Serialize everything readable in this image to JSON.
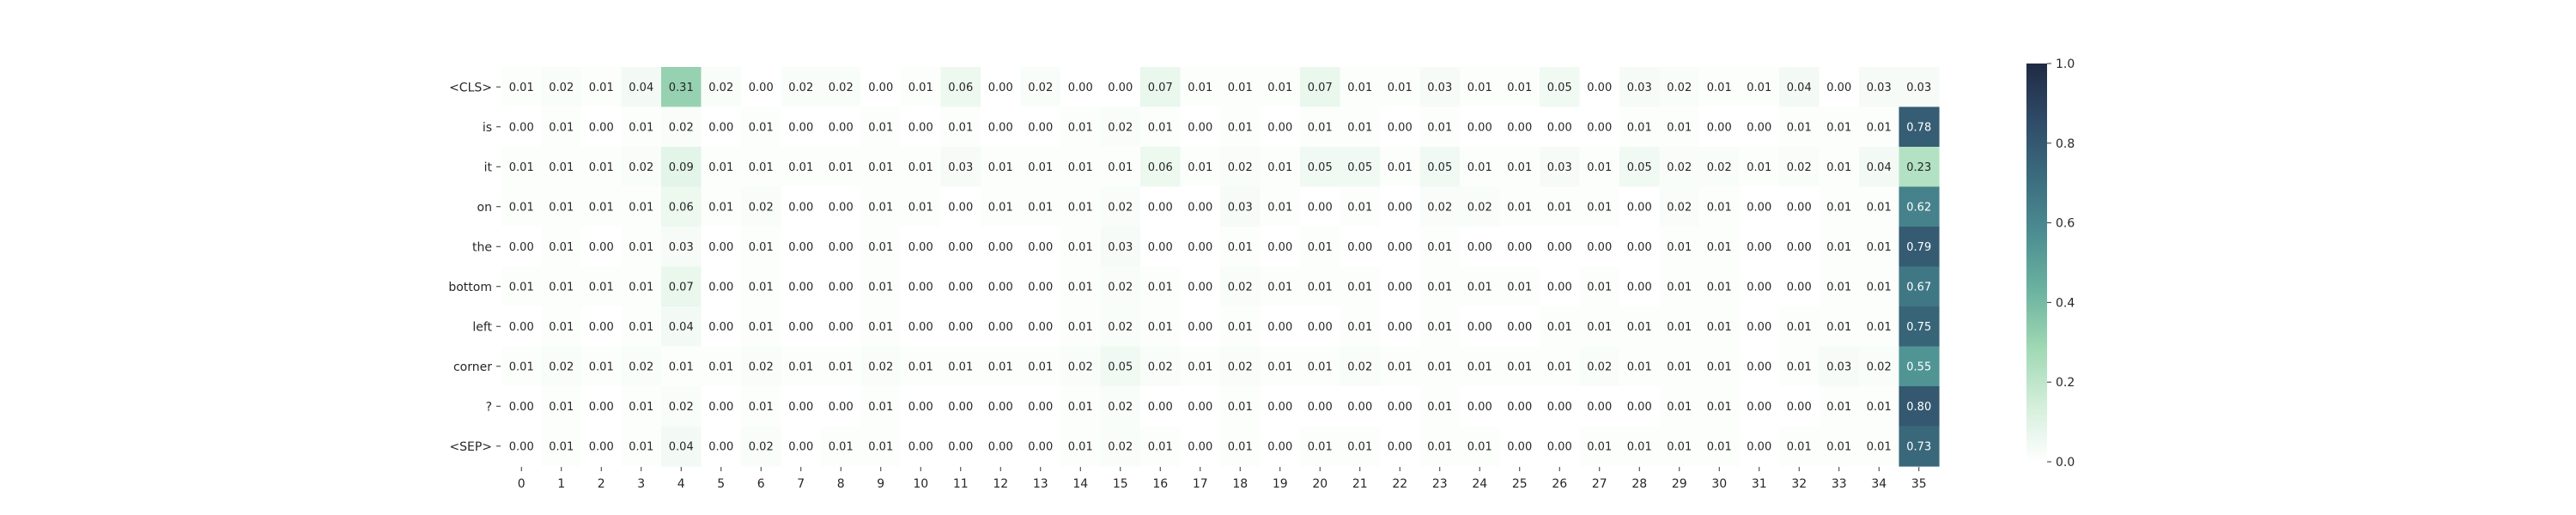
{
  "chart_data": {
    "type": "heatmap",
    "title": "",
    "xlabel": "",
    "ylabel": "",
    "rows": [
      "<CLS>",
      "is",
      "it",
      "on",
      "the",
      "bottom",
      "left",
      "corner",
      "?",
      "<SEP>"
    ],
    "cols": [
      "0",
      "1",
      "2",
      "3",
      "4",
      "5",
      "6",
      "7",
      "8",
      "9",
      "10",
      "11",
      "12",
      "13",
      "14",
      "15",
      "16",
      "17",
      "18",
      "19",
      "20",
      "21",
      "22",
      "23",
      "24",
      "25",
      "26",
      "27",
      "28",
      "29",
      "30",
      "31",
      "32",
      "33",
      "34",
      "35"
    ],
    "values": [
      [
        0.01,
        0.02,
        0.01,
        0.04,
        0.31,
        0.02,
        0.0,
        0.02,
        0.02,
        0.0,
        0.01,
        0.06,
        0.0,
        0.02,
        0.0,
        0.0,
        0.07,
        0.01,
        0.01,
        0.01,
        0.07,
        0.01,
        0.01,
        0.03,
        0.01,
        0.01,
        0.05,
        0.0,
        0.03,
        0.02,
        0.01,
        0.01,
        0.04,
        0.0,
        0.03,
        0.03
      ],
      [
        0.0,
        0.01,
        0.0,
        0.01,
        0.02,
        0.0,
        0.01,
        0.0,
        0.0,
        0.01,
        0.0,
        0.01,
        0.0,
        0.0,
        0.01,
        0.02,
        0.01,
        0.0,
        0.01,
        0.0,
        0.01,
        0.01,
        0.0,
        0.01,
        0.0,
        0.0,
        0.0,
        0.0,
        0.01,
        0.01,
        0.0,
        0.0,
        0.01,
        0.01,
        0.01,
        0.78
      ],
      [
        0.01,
        0.01,
        0.01,
        0.02,
        0.09,
        0.01,
        0.01,
        0.01,
        0.01,
        0.01,
        0.01,
        0.03,
        0.01,
        0.01,
        0.01,
        0.01,
        0.06,
        0.01,
        0.02,
        0.01,
        0.05,
        0.05,
        0.01,
        0.05,
        0.01,
        0.01,
        0.03,
        0.01,
        0.05,
        0.02,
        0.02,
        0.01,
        0.02,
        0.01,
        0.04,
        0.23
      ],
      [
        0.01,
        0.01,
        0.01,
        0.01,
        0.06,
        0.01,
        0.02,
        0.0,
        0.0,
        0.01,
        0.01,
        0.0,
        0.01,
        0.01,
        0.01,
        0.02,
        0.0,
        0.0,
        0.03,
        0.01,
        0.0,
        0.01,
        0.0,
        0.02,
        0.02,
        0.01,
        0.01,
        0.01,
        0.0,
        0.02,
        0.01,
        0.0,
        0.0,
        0.01,
        0.01,
        0.62
      ],
      [
        0.0,
        0.01,
        0.0,
        0.01,
        0.03,
        0.0,
        0.01,
        0.0,
        0.0,
        0.01,
        0.0,
        0.0,
        0.0,
        0.0,
        0.01,
        0.03,
        0.0,
        0.0,
        0.01,
        0.0,
        0.01,
        0.0,
        0.0,
        0.01,
        0.0,
        0.0,
        0.0,
        0.0,
        0.0,
        0.01,
        0.01,
        0.0,
        0.0,
        0.01,
        0.01,
        0.79
      ],
      [
        0.01,
        0.01,
        0.01,
        0.01,
        0.07,
        0.0,
        0.01,
        0.0,
        0.0,
        0.01,
        0.0,
        0.0,
        0.0,
        0.0,
        0.01,
        0.02,
        0.01,
        0.0,
        0.02,
        0.01,
        0.01,
        0.01,
        0.0,
        0.01,
        0.01,
        0.01,
        0.0,
        0.01,
        0.0,
        0.01,
        0.01,
        0.0,
        0.0,
        0.01,
        0.01,
        0.67
      ],
      [
        0.0,
        0.01,
        0.0,
        0.01,
        0.04,
        0.0,
        0.01,
        0.0,
        0.0,
        0.01,
        0.0,
        0.0,
        0.0,
        0.0,
        0.01,
        0.02,
        0.01,
        0.0,
        0.01,
        0.0,
        0.0,
        0.01,
        0.0,
        0.01,
        0.0,
        0.0,
        0.01,
        0.01,
        0.01,
        0.01,
        0.01,
        0.0,
        0.01,
        0.01,
        0.01,
        0.75
      ],
      [
        0.01,
        0.02,
        0.01,
        0.02,
        0.01,
        0.01,
        0.02,
        0.01,
        0.01,
        0.02,
        0.01,
        0.01,
        0.01,
        0.01,
        0.02,
        0.05,
        0.02,
        0.01,
        0.02,
        0.01,
        0.01,
        0.02,
        0.01,
        0.01,
        0.01,
        0.01,
        0.01,
        0.02,
        0.01,
        0.01,
        0.01,
        0.0,
        0.01,
        0.03,
        0.02,
        0.55
      ],
      [
        0.0,
        0.01,
        0.0,
        0.01,
        0.02,
        0.0,
        0.01,
        0.0,
        0.0,
        0.01,
        0.0,
        0.0,
        0.0,
        0.0,
        0.01,
        0.02,
        0.0,
        0.0,
        0.01,
        0.0,
        0.0,
        0.0,
        0.0,
        0.01,
        0.0,
        0.0,
        0.0,
        0.0,
        0.0,
        0.01,
        0.01,
        0.0,
        0.0,
        0.01,
        0.01,
        0.8
      ],
      [
        0.0,
        0.01,
        0.0,
        0.01,
        0.04,
        0.0,
        0.02,
        0.0,
        0.01,
        0.01,
        0.0,
        0.0,
        0.0,
        0.0,
        0.01,
        0.02,
        0.01,
        0.0,
        0.01,
        0.0,
        0.01,
        0.01,
        0.0,
        0.01,
        0.01,
        0.0,
        0.0,
        0.01,
        0.01,
        0.01,
        0.01,
        0.0,
        0.01,
        0.01,
        0.01,
        0.73
      ]
    ],
    "value_format": "0.00",
    "color_range": [
      0,
      1
    ],
    "colorbar": {
      "ticks": [
        "0.0",
        "0.2",
        "0.4",
        "0.6",
        "0.8",
        "1.0"
      ],
      "tick_values": [
        0.0,
        0.2,
        0.4,
        0.6,
        0.8,
        1.0
      ],
      "colors": [
        "#ffffff",
        "#d3eeda",
        "#9fd8b4",
        "#6cb3a0",
        "#4c8e92",
        "#3b6c7e",
        "#2f4b67",
        "#1f2a44"
      ]
    },
    "grid": false
  }
}
